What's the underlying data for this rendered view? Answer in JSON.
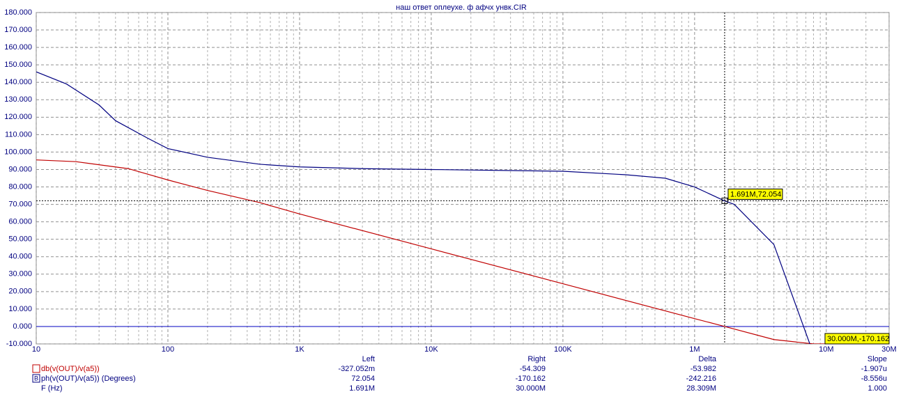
{
  "chart_data": {
    "type": "line",
    "title": "наш ответ оплеухе. ф афчх унвк.CIR",
    "log_x": true,
    "grid": true,
    "xlim": [
      10,
      30000000
    ],
    "xticks": [
      {
        "value": 10,
        "label": "10"
      },
      {
        "value": 100,
        "label": "100"
      },
      {
        "value": 1000,
        "label": "1K"
      },
      {
        "value": 10000,
        "label": "10K"
      },
      {
        "value": 100000,
        "label": "100K"
      },
      {
        "value": 1000000,
        "label": "1M"
      },
      {
        "value": 10000000,
        "label": "10M"
      },
      {
        "value": 30000000,
        "label": "30M"
      }
    ],
    "ylim": [
      -10,
      180
    ],
    "yticks": [
      {
        "value": -10,
        "label": "-10.000"
      },
      {
        "value": 0,
        "label": "0.000"
      },
      {
        "value": 10,
        "label": "10.000"
      },
      {
        "value": 20,
        "label": "20.000"
      },
      {
        "value": 30,
        "label": "30.000"
      },
      {
        "value": 40,
        "label": "40.000"
      },
      {
        "value": 50,
        "label": "50.000"
      },
      {
        "value": 60,
        "label": "60.000"
      },
      {
        "value": 70,
        "label": "70.000"
      },
      {
        "value": 80,
        "label": "80.000"
      },
      {
        "value": 90,
        "label": "90.000"
      },
      {
        "value": 100,
        "label": "100.000"
      },
      {
        "value": 110,
        "label": "110.000"
      },
      {
        "value": 120,
        "label": "120.000"
      },
      {
        "value": 130,
        "label": "130.000"
      },
      {
        "value": 140,
        "label": "140.000"
      },
      {
        "value": 150,
        "label": "150.000"
      },
      {
        "value": 160,
        "label": "160.000"
      },
      {
        "value": 170,
        "label": "170.000"
      },
      {
        "value": 180,
        "label": "180.000"
      }
    ],
    "series": [
      {
        "name": "db(v(OUT)/v(a5))",
        "color": "#c00000",
        "x": [
          10,
          20,
          50,
          100,
          200,
          500,
          1000,
          10000,
          100000,
          1000000,
          1691000,
          4000000,
          8000000,
          30000000
        ],
        "values": [
          95.5,
          94.5,
          90.5,
          84,
          78,
          71,
          64.5,
          44.5,
          24.5,
          4.5,
          0,
          -7.5,
          -10,
          -10
        ]
      },
      {
        "name": "ph(v(OUT)/v(a5)) (Degrees)",
        "color": "#000080",
        "x": [
          10,
          17,
          30,
          40,
          70,
          100,
          200,
          500,
          1000,
          3000,
          10000,
          100000,
          300000,
          600000,
          1000000,
          1691000,
          2000000,
          4000000,
          7500000
        ],
        "values": [
          146,
          139,
          127,
          118,
          108,
          102,
          97,
          93,
          91.5,
          90.5,
          90,
          89,
          87,
          85,
          80,
          72,
          70,
          47,
          -10
        ]
      }
    ],
    "cursor": {
      "x": 1691000,
      "y": 72.054
    },
    "annotations": [
      "1.691M,72.054",
      "30.000M,-170.162"
    ]
  },
  "readout": {
    "headers": [
      "Left",
      "Right",
      "Delta",
      "Slope"
    ],
    "rows": [
      [
        "db(v(OUT)/v(a5))",
        "-327.052m",
        "-54.309",
        "-53.982",
        "-1.907u"
      ],
      [
        "ph(v(OUT)/v(a5)) (Degrees)",
        "72.054",
        "-170.162",
        "-242.216",
        "-8.556u"
      ],
      [
        "F (Hz)",
        "1.691M",
        "30.000M",
        "28.309M",
        "1.000"
      ]
    ]
  }
}
